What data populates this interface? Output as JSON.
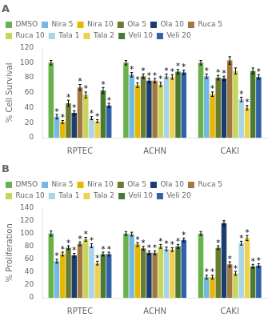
{
  "chart_data": [
    {
      "type": "bar",
      "title": "A",
      "ylabel": "% Cell Survival",
      "categories": [
        "RPTEC",
        "ACHN",
        "CAKI"
      ],
      "ylim": [
        0,
        120
      ],
      "yticks": [
        0,
        20,
        40,
        60,
        80,
        100,
        120
      ],
      "grid": false,
      "legend": "top",
      "annotation": "*",
      "series": [
        {
          "name": "DMSO",
          "color": "#6ab04c",
          "values": [
            100,
            100,
            100
          ],
          "errors": [
            3,
            3,
            3
          ],
          "stars": [
            false,
            false,
            false
          ]
        },
        {
          "name": "Nira 5",
          "color": "#74b9e0",
          "values": [
            28,
            84,
            82
          ],
          "errors": [
            3,
            3,
            3
          ],
          "stars": [
            true,
            true,
            true
          ]
        },
        {
          "name": "Nira 10",
          "color": "#e6b800",
          "values": [
            21,
            70,
            58
          ],
          "errors": [
            2,
            3,
            3
          ],
          "stars": [
            true,
            true,
            true
          ]
        },
        {
          "name": "Ola 5",
          "color": "#6b7c2e",
          "values": [
            46,
            82,
            80
          ],
          "errors": [
            4,
            3,
            3
          ],
          "stars": [
            true,
            true,
            true
          ]
        },
        {
          "name": "Ola 10",
          "color": "#1a3f6f",
          "values": [
            33,
            76,
            79
          ],
          "errors": [
            3,
            3,
            3
          ],
          "stars": [
            true,
            true,
            true
          ]
        },
        {
          "name": "Ruca 5",
          "color": "#a07840",
          "values": [
            67,
            76,
            103
          ],
          "errors": [
            4,
            3,
            5
          ],
          "stars": [
            true,
            true,
            false
          ]
        },
        {
          "name": "Ruca 10",
          "color": "#c8d45a",
          "values": [
            57,
            71,
            89
          ],
          "errors": [
            4,
            3,
            4
          ],
          "stars": [
            true,
            true,
            false
          ]
        },
        {
          "name": "Tala 1",
          "color": "#a8d4e8",
          "values": [
            26,
            82,
            51
          ],
          "errors": [
            2,
            3,
            3
          ],
          "stars": [
            true,
            true,
            true
          ]
        },
        {
          "name": "Tala 2",
          "color": "#f0d050",
          "values": [
            22,
            81,
            40
          ],
          "errors": [
            2,
            3,
            3
          ],
          "stars": [
            true,
            true,
            true
          ]
        },
        {
          "name": "Veli 10",
          "color": "#4a7a30",
          "values": [
            63,
            88,
            89
          ],
          "errors": [
            4,
            3,
            4
          ],
          "stars": [
            true,
            true,
            false
          ]
        },
        {
          "name": "Veli 20",
          "color": "#3060a8",
          "values": [
            43,
            87,
            81
          ],
          "errors": [
            3,
            3,
            3
          ],
          "stars": [
            true,
            true,
            true
          ]
        }
      ]
    },
    {
      "type": "bar",
      "title": "B",
      "ylabel": "% Proliferation",
      "categories": [
        "RPTEC",
        "ACHN",
        "CAKI"
      ],
      "ylim": [
        0,
        140
      ],
      "yticks": [
        0,
        20,
        40,
        60,
        80,
        100,
        120,
        140
      ],
      "grid": false,
      "legend": "top",
      "annotation": "*",
      "series": [
        {
          "name": "DMSO",
          "color": "#6ab04c",
          "values": [
            100,
            100,
            100
          ],
          "errors": [
            4,
            3,
            3
          ],
          "stars": [
            false,
            false,
            false
          ]
        },
        {
          "name": "Nira 5",
          "color": "#74b9e0",
          "values": [
            57,
            99,
            32
          ],
          "errors": [
            3,
            3,
            3
          ],
          "stars": [
            true,
            false,
            true
          ]
        },
        {
          "name": "Nira 10",
          "color": "#e6b800",
          "values": [
            68,
            83,
            32
          ],
          "errors": [
            3,
            3,
            3
          ],
          "stars": [
            true,
            true,
            true
          ]
        },
        {
          "name": "Ola 5",
          "color": "#6b7c2e",
          "values": [
            78,
            77,
            78
          ],
          "errors": [
            3,
            3,
            3
          ],
          "stars": [
            true,
            true,
            true
          ]
        },
        {
          "name": "Ola 10",
          "color": "#1a3f6f",
          "values": [
            66,
            70,
            116
          ],
          "errors": [
            3,
            3,
            4
          ],
          "stars": [
            true,
            true,
            false
          ]
        },
        {
          "name": "Ruca 5",
          "color": "#a07840",
          "values": [
            84,
            70,
            52
          ],
          "errors": [
            3,
            3,
            4
          ],
          "stars": [
            true,
            true,
            true
          ]
        },
        {
          "name": "Ruca 10",
          "color": "#c8d45a",
          "values": [
            91,
            80,
            38
          ],
          "errors": [
            3,
            3,
            3
          ],
          "stars": [
            true,
            true,
            true
          ]
        },
        {
          "name": "Tala 1",
          "color": "#a8d4e8",
          "values": [
            81,
            76,
            85
          ],
          "errors": [
            3,
            3,
            3
          ],
          "stars": [
            true,
            true,
            true
          ]
        },
        {
          "name": "Tala 2",
          "color": "#f0d050",
          "values": [
            54,
            75,
            93
          ],
          "errors": [
            3,
            3,
            4
          ],
          "stars": [
            true,
            true,
            true
          ]
        },
        {
          "name": "Veli 10",
          "color": "#4a7a30",
          "values": [
            68,
            80,
            49
          ],
          "errors": [
            3,
            3,
            3
          ],
          "stars": [
            true,
            true,
            true
          ]
        },
        {
          "name": "Veli 20",
          "color": "#3060a8",
          "values": [
            68,
            90,
            50
          ],
          "errors": [
            3,
            3,
            3
          ],
          "stars": [
            true,
            true,
            true
          ]
        }
      ]
    }
  ]
}
